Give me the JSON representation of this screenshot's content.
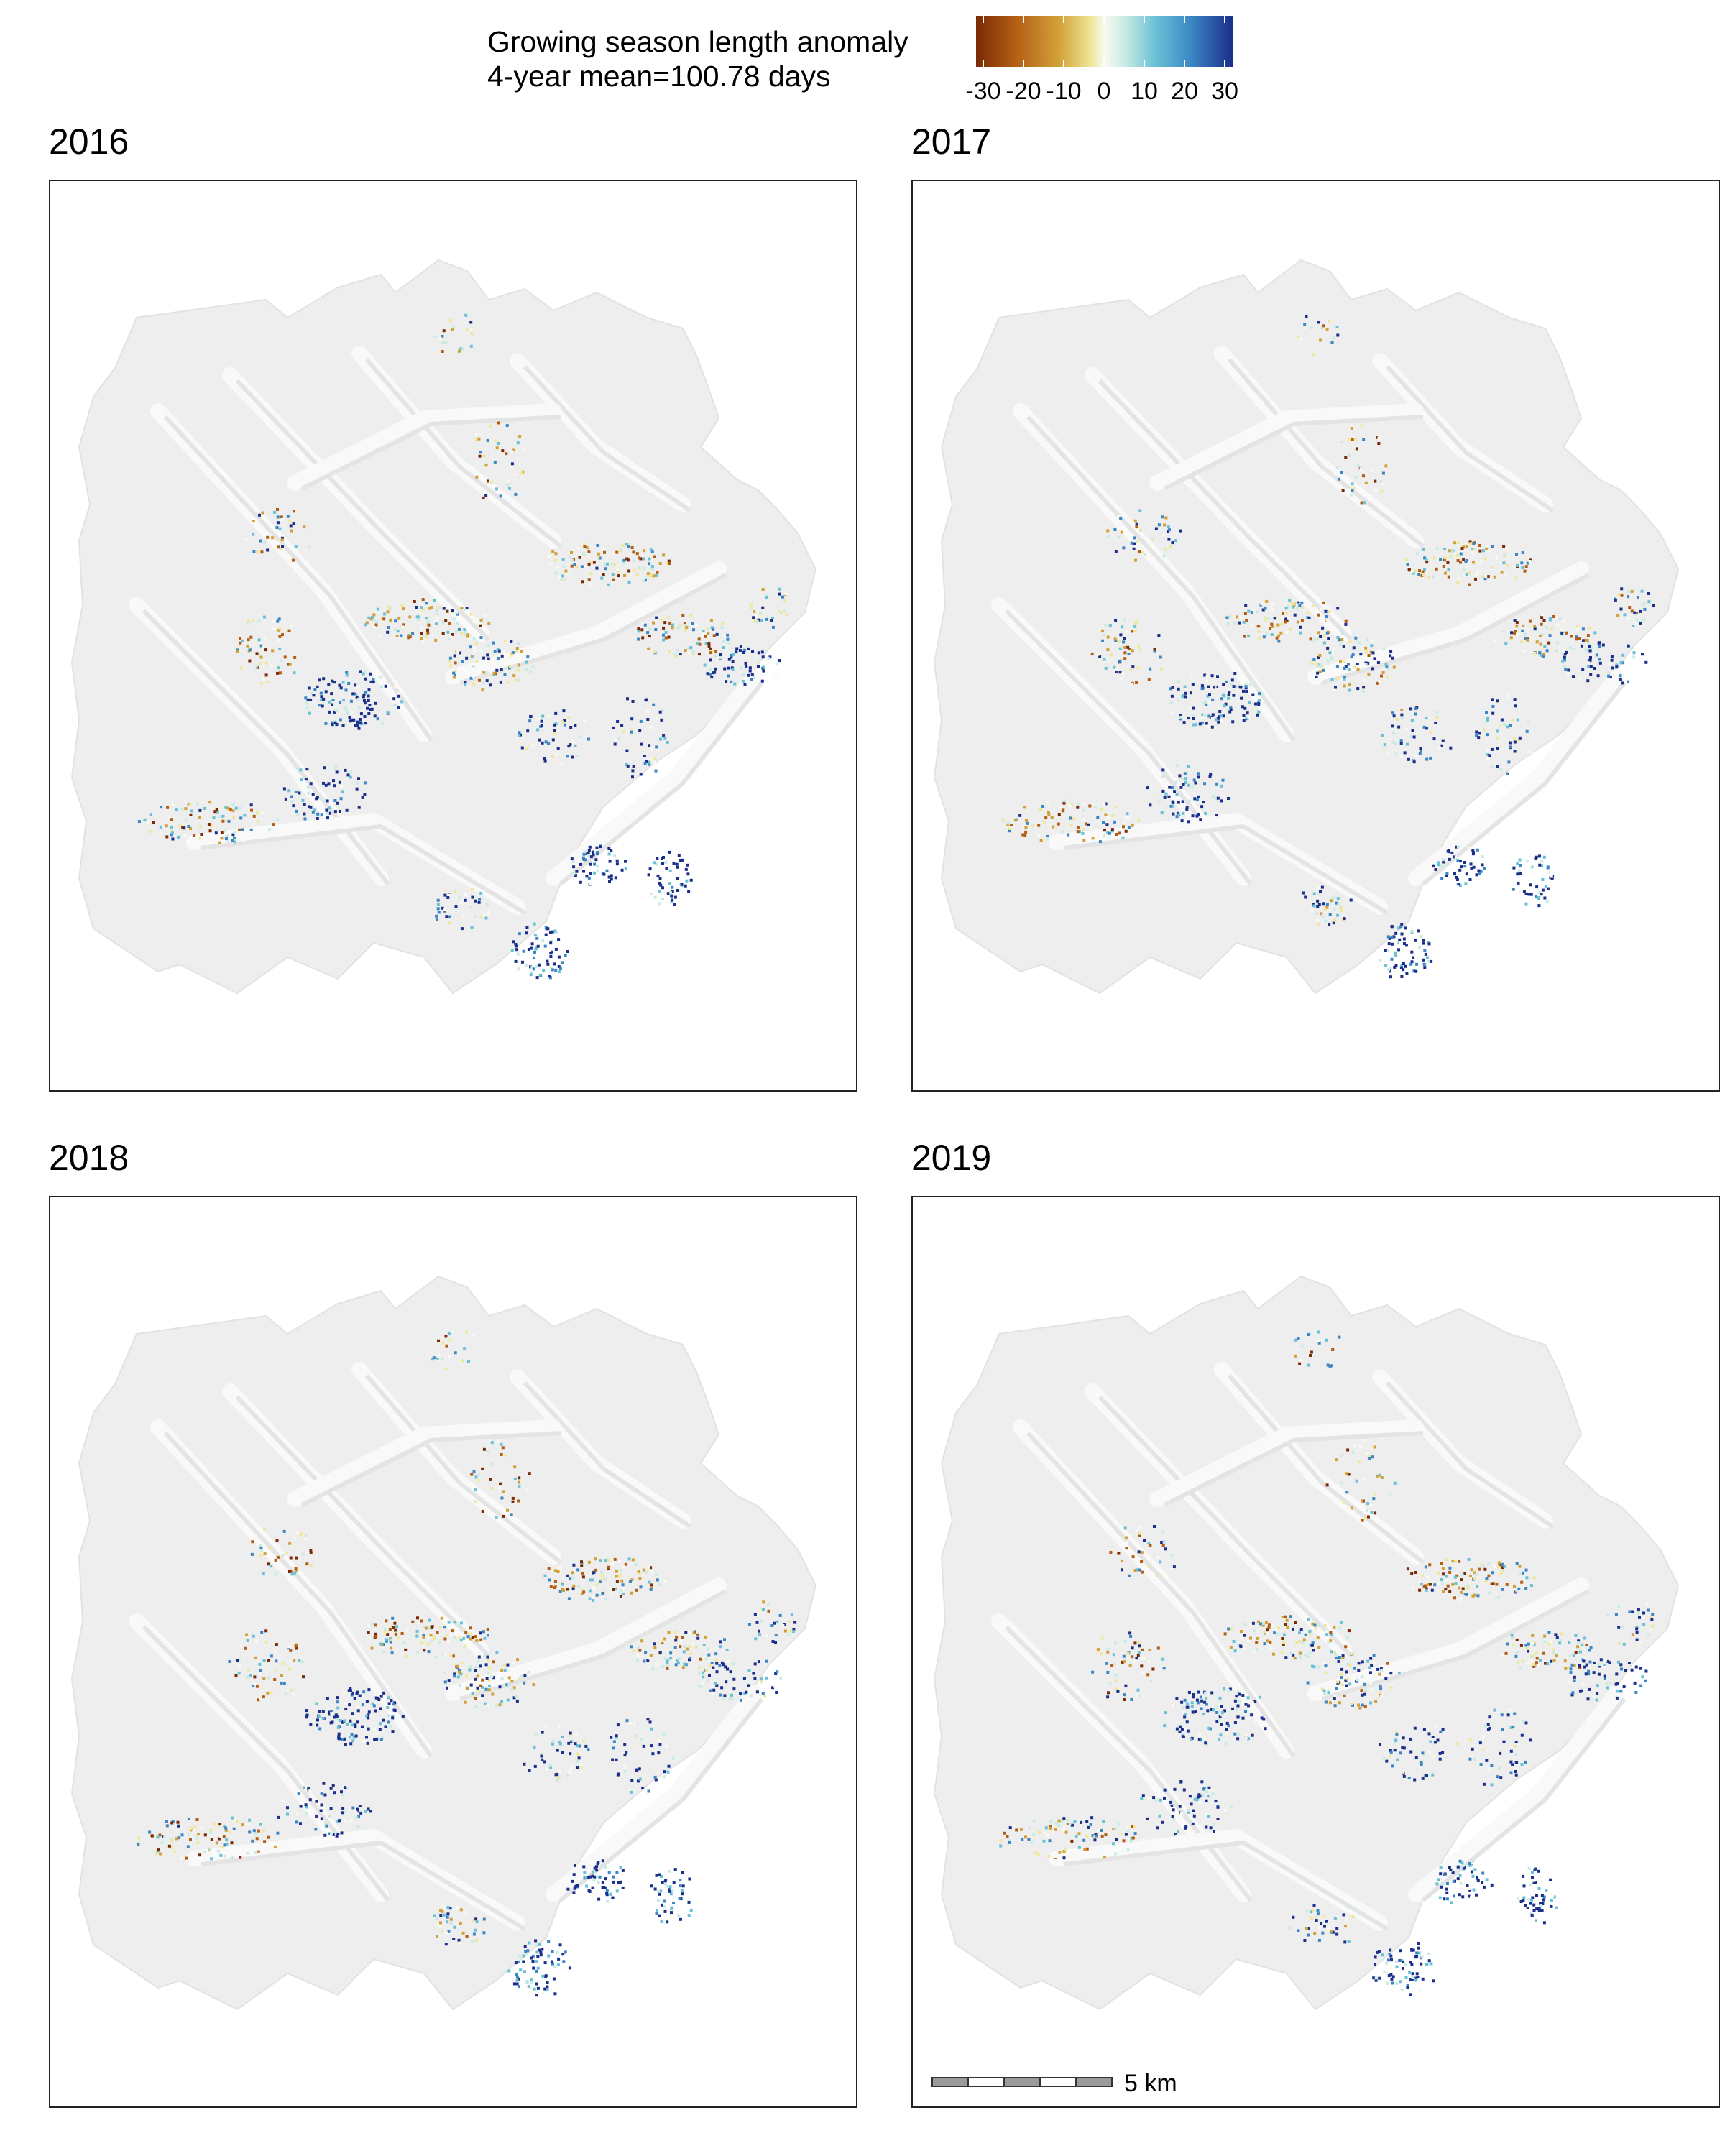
{
  "legend": {
    "title_line1": "Growing season length anomaly",
    "title_line2": "4-year mean=100.78 days",
    "tick_labels": [
      "-30",
      "-20",
      "-10",
      "0",
      "10",
      "20",
      "30"
    ],
    "range": [
      -30,
      30
    ],
    "colors": [
      "#7a2a05",
      "#b35d14",
      "#d2a037",
      "#efe79a",
      "#f8f9f0",
      "#c8ebe3",
      "#69c1d5",
      "#3b86c4",
      "#1b2f8a"
    ]
  },
  "panels": [
    {
      "year": "2016"
    },
    {
      "year": "2017"
    },
    {
      "year": "2018"
    },
    {
      "year": "2019"
    }
  ],
  "scalebar": {
    "label": "5 km"
  }
}
